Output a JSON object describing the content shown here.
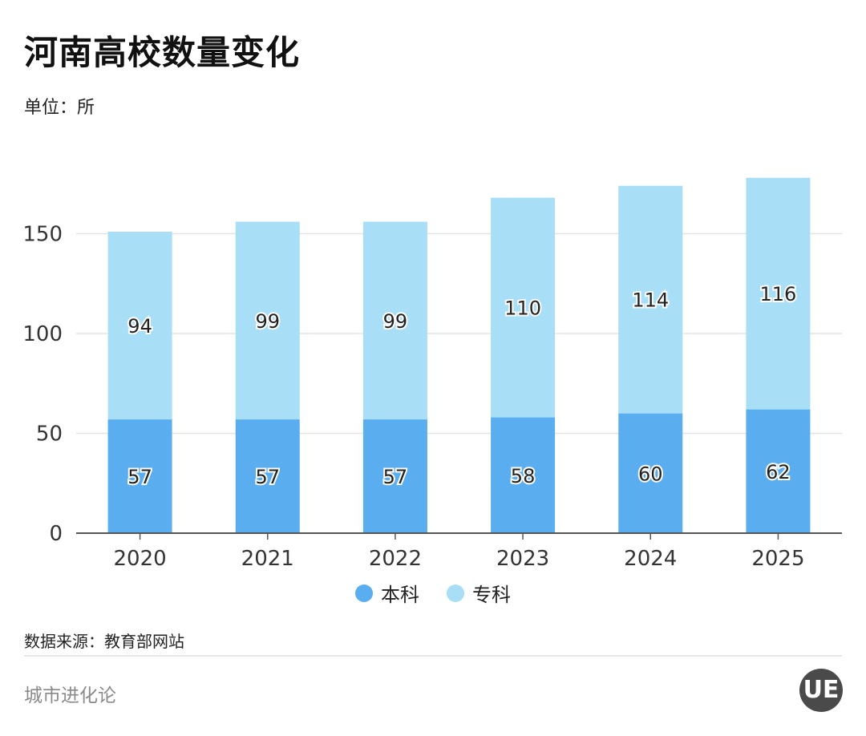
{
  "header": {
    "title": "河南高校数量变化",
    "unit": "单位：所"
  },
  "footer": {
    "source": "数据来源：教育部网站",
    "brand": "城市进化论",
    "logo_text": "UE"
  },
  "colors": {
    "undergrad": "#5aaef0",
    "vocational": "#a9def7",
    "grid": "#e3e3e3",
    "axis": "#555555"
  },
  "chart_data": {
    "type": "bar",
    "stacked": true,
    "categories": [
      "2020",
      "2021",
      "2022",
      "2023",
      "2024",
      "2025"
    ],
    "series": [
      {
        "name": "本科",
        "values": [
          57,
          57,
          57,
          58,
          60,
          62
        ]
      },
      {
        "name": "专科",
        "values": [
          94,
          99,
          99,
          110,
          114,
          116
        ]
      }
    ],
    "yticks": [
      0,
      50,
      100,
      150
    ],
    "ylim": [
      0,
      178
    ],
    "grid": true,
    "legend_position": "bottom"
  }
}
